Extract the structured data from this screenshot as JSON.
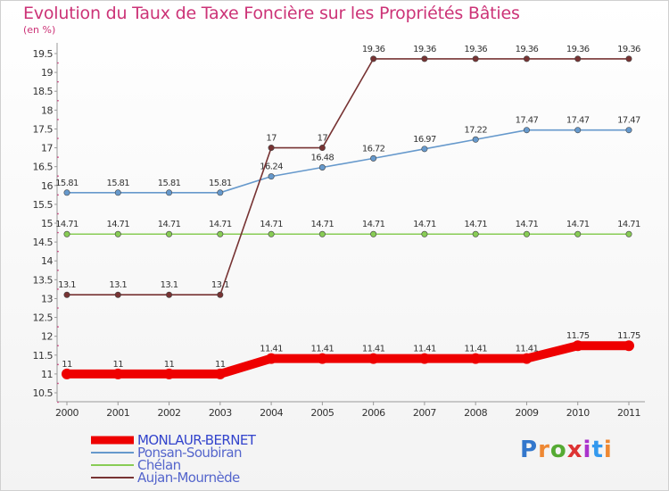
{
  "page": {
    "title": "Evolution du Taux de Taxe Foncière sur les Propriétés Bâties",
    "unit_label": "(en %)",
    "logo_text": "Proxiti"
  },
  "chart_data": {
    "type": "line",
    "title": "Evolution du Taux de Taxe Foncière sur les Propriétés Bâties",
    "ylabel": "(en %)",
    "xlabel": "",
    "x": [
      "2000",
      "2001",
      "2002",
      "2003",
      "2004",
      "2005",
      "2006",
      "2007",
      "2008",
      "2009",
      "2010",
      "2011"
    ],
    "ylim": [
      10.5,
      19.5
    ],
    "yticks": [
      10.5,
      11,
      11.5,
      12,
      12.5,
      13,
      13.5,
      14,
      14.5,
      15,
      15.5,
      16,
      16.5,
      17,
      17.5,
      18,
      18.5,
      19,
      19.5
    ],
    "grid": false,
    "legend_position": "bottom-left",
    "series": [
      {
        "name": "MONLAUR-BERNET",
        "color": "#ee0000",
        "emphasis": true,
        "values": [
          11,
          11,
          11,
          11,
          11.41,
          11.41,
          11.41,
          11.41,
          11.41,
          11.41,
          11.75,
          11.75
        ]
      },
      {
        "name": "Ponsan-Soubiran",
        "color": "#6699cc",
        "emphasis": false,
        "values": [
          15.81,
          15.81,
          15.81,
          15.81,
          16.24,
          16.48,
          16.72,
          16.97,
          17.22,
          17.47,
          17.47,
          17.47
        ]
      },
      {
        "name": "Chélan",
        "color": "#88cc55",
        "emphasis": false,
        "values": [
          14.71,
          14.71,
          14.71,
          14.71,
          14.71,
          14.71,
          14.71,
          14.71,
          14.71,
          14.71,
          14.71,
          14.71
        ]
      },
      {
        "name": "Aujan-Mournède",
        "color": "#773333",
        "emphasis": false,
        "values": [
          13.1,
          13.1,
          13.1,
          13.1,
          17,
          17,
          19.36,
          19.36,
          19.36,
          19.36,
          19.36,
          19.36
        ]
      }
    ]
  }
}
